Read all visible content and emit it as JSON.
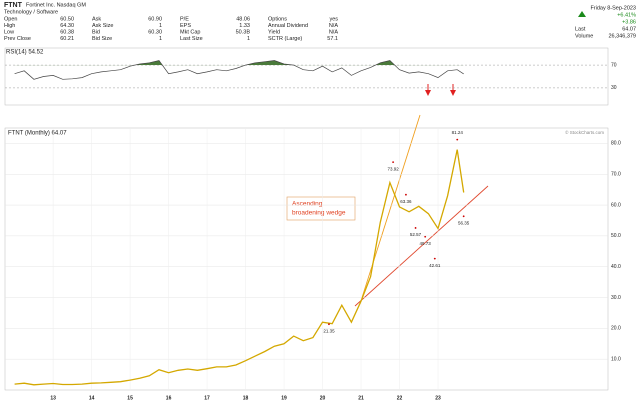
{
  "header": {
    "symbol": "FTNT",
    "name": "Fortinet Inc.  Nasdaq GM",
    "sector": "Technology / Software",
    "fields": [
      [
        [
          "Open",
          "60.50"
        ],
        [
          "High",
          "64.30"
        ],
        [
          "Low",
          "60.38"
        ],
        [
          "Prev Close",
          "60.21"
        ]
      ],
      [
        [
          "Ask",
          "60.90"
        ],
        [
          "Ask Size",
          "1"
        ],
        [
          "Bid",
          "60.30"
        ],
        [
          "Bid Size",
          "1"
        ]
      ],
      [
        [
          "P/E",
          "48.06"
        ],
        [
          "EPS",
          "1.33"
        ],
        [
          "Mkt Cap",
          "50.3B"
        ],
        [
          "Last Size",
          "1"
        ]
      ],
      [
        [
          "Options",
          "yes"
        ],
        [
          "Annual Dividend",
          "N/A"
        ],
        [
          "Yield",
          "N/A"
        ],
        [
          "SCTR (Large)",
          "57.1"
        ]
      ]
    ],
    "date": "Friday 8-Sep-2023",
    "change_pct": "+6.41%",
    "change": "+3.86",
    "last_label": "Last",
    "last": "64.07",
    "volume_label": "Volume",
    "volume": "26,346,379",
    "source": "© StockCharts.com"
  },
  "chart_data": [
    {
      "type": "line",
      "title": "RSI(14) 54.52",
      "color": "#444444",
      "fill_color": "#4a7a3a",
      "x": [
        "2012-01",
        "2012-04",
        "2012-07",
        "2012-10",
        "2013-01",
        "2013-04",
        "2013-07",
        "2013-10",
        "2014-01",
        "2014-04",
        "2014-07",
        "2014-10",
        "2015-01",
        "2015-04",
        "2015-07",
        "2015-10",
        "2016-01",
        "2016-04",
        "2016-07",
        "2016-10",
        "2017-01",
        "2017-04",
        "2017-07",
        "2017-10",
        "2018-01",
        "2018-04",
        "2018-07",
        "2018-10",
        "2019-01",
        "2019-04",
        "2019-07",
        "2019-10",
        "2020-01",
        "2020-04",
        "2020-07",
        "2020-10",
        "2021-01",
        "2021-04",
        "2021-07",
        "2021-10",
        "2022-01",
        "2022-04",
        "2022-07",
        "2022-10",
        "2023-01",
        "2023-04",
        "2023-07",
        "2023-09"
      ],
      "values": [
        55,
        60,
        45,
        50,
        52,
        45,
        46,
        48,
        55,
        58,
        60,
        62,
        68,
        72,
        74,
        78,
        55,
        58,
        62,
        55,
        58,
        62,
        60,
        64,
        70,
        74,
        76,
        78,
        72,
        70,
        62,
        60,
        68,
        58,
        65,
        52,
        60,
        66,
        74,
        78,
        62,
        56,
        58,
        55,
        48,
        60,
        62,
        54.52
      ],
      "xlim": [
        "2011-10",
        "2027-06"
      ],
      "ylim": [
        0,
        100
      ],
      "yticks": [
        30,
        70
      ]
    },
    {
      "type": "line",
      "title": "FTNT (Monthly) 64.07",
      "color": "#d4a800",
      "x": [
        "2012-01",
        "2012-04",
        "2012-07",
        "2012-10",
        "2013-01",
        "2013-04",
        "2013-07",
        "2013-10",
        "2014-01",
        "2014-04",
        "2014-07",
        "2014-10",
        "2015-01",
        "2015-04",
        "2015-07",
        "2015-10",
        "2016-01",
        "2016-04",
        "2016-07",
        "2016-10",
        "2017-01",
        "2017-04",
        "2017-07",
        "2017-10",
        "2018-01",
        "2018-04",
        "2018-07",
        "2018-10",
        "2019-01",
        "2019-04",
        "2019-07",
        "2019-10",
        "2020-01",
        "2020-04",
        "2020-07",
        "2020-10",
        "2021-01",
        "2021-04",
        "2021-07",
        "2021-10",
        "2022-01",
        "2022-04",
        "2022-07",
        "2022-10",
        "2023-01",
        "2023-04",
        "2023-07",
        "2023-09"
      ],
      "values": [
        1.9,
        2.2,
        1.7,
        1.9,
        2.1,
        1.8,
        1.8,
        1.9,
        2.2,
        2.3,
        2.5,
        2.7,
        3.2,
        3.8,
        4.6,
        6.6,
        5.6,
        6.4,
        6.8,
        6.4,
        6.9,
        7.5,
        7.5,
        8.1,
        9.5,
        11.0,
        12.5,
        14.2,
        15.0,
        17.5,
        16.0,
        17.0,
        22.0,
        21.5,
        27.5,
        22.0,
        28.8,
        36.8,
        54.4,
        67.3,
        59.4,
        57.8,
        59.6,
        57.2,
        52.4,
        63.0,
        78.0,
        64.07
      ],
      "xlim": [
        "2011-10",
        "2027-06"
      ],
      "ylim": [
        0,
        85
      ],
      "yticks": [
        {
          "value": 10,
          "label": "10.0"
        },
        {
          "value": 20,
          "label": "20.0"
        },
        {
          "value": 30,
          "label": "30.0"
        },
        {
          "value": 40,
          "label": "40.0"
        },
        {
          "value": 50,
          "label": "50.0"
        },
        {
          "value": 60,
          "label": "60.0"
        },
        {
          "value": 70,
          "label": "70.0"
        },
        {
          "value": 80,
          "label": "80.0"
        }
      ],
      "xticks": [
        {
          "value": "2013-01",
          "label": "13"
        },
        {
          "value": "2014-01",
          "label": "14"
        },
        {
          "value": "2015-01",
          "label": "15"
        },
        {
          "value": "2016-01",
          "label": "16"
        },
        {
          "value": "2017-01",
          "label": "17"
        },
        {
          "value": "2018-01",
          "label": "18"
        },
        {
          "value": "2019-01",
          "label": "19"
        },
        {
          "value": "2020-01",
          "label": "20"
        },
        {
          "value": "2021-01",
          "label": "21"
        },
        {
          "value": "2022-01",
          "label": "22"
        },
        {
          "value": "2023-01",
          "label": "23"
        }
      ],
      "annotations": [
        {
          "x": "2023-07",
          "value": 81.24
        },
        {
          "x": "2021-11",
          "value": 73.92
        },
        {
          "x": "2022-03",
          "value": 63.36
        },
        {
          "x": "2022-06",
          "value": 52.57
        },
        {
          "x": "2022-09",
          "value": 49.73
        },
        {
          "x": "2022-12",
          "value": 42.61
        },
        {
          "x": "2023-09",
          "value": 56.35
        },
        {
          "x": "2020-03",
          "value": 21.35
        }
      ],
      "callout": [
        "Ascending",
        "broadening wedge"
      ]
    }
  ]
}
